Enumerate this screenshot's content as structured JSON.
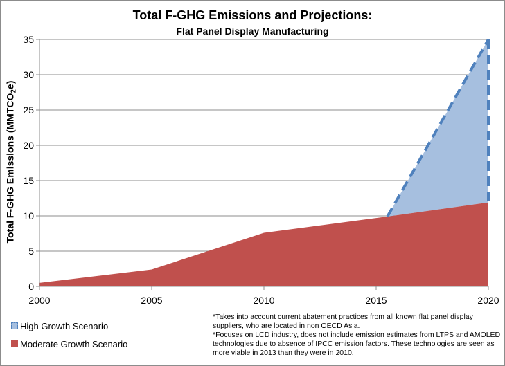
{
  "chart_data": {
    "type": "area",
    "title": "Total F-GHG Emissions  and Projections:",
    "subtitle": "Flat Panel Display Manufacturing",
    "xlabel": "",
    "ylabel_main": "Total F-GHG Emissions (MMTCO",
    "ylabel_sub": "2",
    "ylabel_end": "e)",
    "x_ticks": [
      "2000",
      "2005",
      "2010",
      "2015",
      "2020"
    ],
    "y_ticks": [
      "0",
      "5",
      "10",
      "15",
      "20",
      "25",
      "30",
      "35"
    ],
    "xlim": [
      2000,
      2020
    ],
    "ylim": [
      0,
      35
    ],
    "grid": "horizontal",
    "series": [
      {
        "name": "Moderate Growth Scenario",
        "color": "#c0504d",
        "x": [
          2000,
          2005,
          2010,
          2015.5,
          2020
        ],
        "values": [
          0.5,
          2.4,
          7.6,
          9.9,
          11.9
        ]
      },
      {
        "name": "High Growth Scenario",
        "color": "#a6bfdf",
        "line_color": "#4f81bd",
        "line_style": "dashed",
        "x": [
          2015.5,
          2020
        ],
        "values": [
          9.9,
          35
        ]
      }
    ],
    "legend_position": "bottom-left"
  },
  "legend": {
    "high": "High Growth Scenario",
    "moderate": "Moderate Growth Scenario"
  },
  "notes": {
    "note1": "*Takes into account current abatement practices from all known flat panel display suppliers, who are located in non OECD Asia.",
    "note2": "*Focuses on LCD industry, does not include emission estimates from LTPS and AMOLED technologies due to absence of IPCC emission factors. These technologies are seen as more viable in 2013 than they were in 2010."
  }
}
